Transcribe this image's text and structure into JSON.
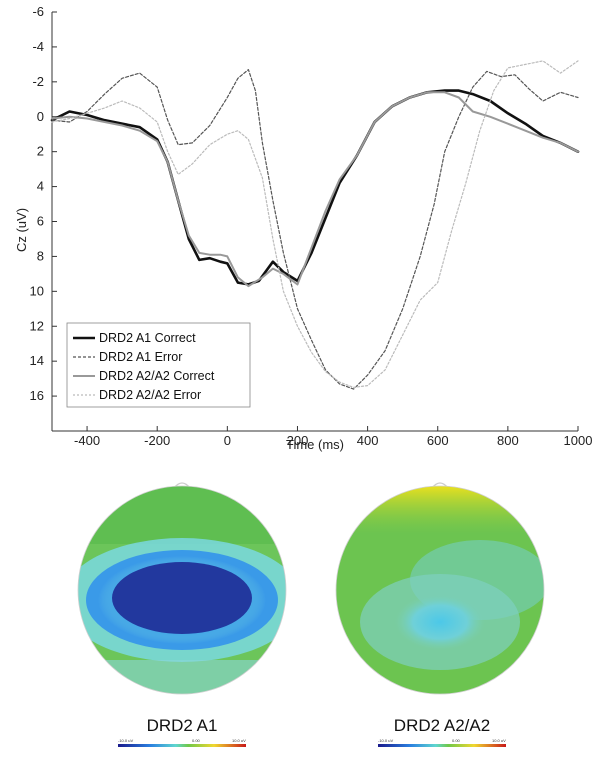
{
  "chart_data": {
    "type": "line",
    "xlabel": "Time (ms)",
    "ylabel": "Cz (uV)",
    "xlim": [
      -500,
      1000
    ],
    "ylim": [
      -6,
      18
    ],
    "y_inverted": true,
    "xticks": [
      "-400",
      "-200",
      "0",
      "200",
      "400",
      "600",
      "800",
      "1000"
    ],
    "yticks": [
      "-6",
      "-4",
      "-2",
      "0",
      "2",
      "4",
      "6",
      "8",
      "10",
      "12",
      "14",
      "16"
    ],
    "legend_position": "bottom-left",
    "series": [
      {
        "name": "DRD2 A1 Correct",
        "style": "solid-thick",
        "color": "#111111",
        "points": [
          [
            -500,
            0.2
          ],
          [
            -450,
            -0.3
          ],
          [
            -400,
            -0.1
          ],
          [
            -350,
            0.2
          ],
          [
            -300,
            0.4
          ],
          [
            -250,
            0.6
          ],
          [
            -200,
            1.3
          ],
          [
            -170,
            2.6
          ],
          [
            -140,
            4.8
          ],
          [
            -110,
            7.0
          ],
          [
            -80,
            8.2
          ],
          [
            -50,
            8.1
          ],
          [
            -20,
            8.3
          ],
          [
            0,
            8.4
          ],
          [
            30,
            9.5
          ],
          [
            60,
            9.6
          ],
          [
            90,
            9.4
          ],
          [
            130,
            8.3
          ],
          [
            160,
            8.9
          ],
          [
            200,
            9.4
          ],
          [
            240,
            7.8
          ],
          [
            280,
            5.8
          ],
          [
            320,
            3.8
          ],
          [
            370,
            2.2
          ],
          [
            420,
            0.3
          ],
          [
            470,
            -0.6
          ],
          [
            520,
            -1.1
          ],
          [
            570,
            -1.4
          ],
          [
            620,
            -1.5
          ],
          [
            660,
            -1.5
          ],
          [
            700,
            -1.3
          ],
          [
            750,
            -0.9
          ],
          [
            800,
            -0.2
          ],
          [
            850,
            0.4
          ],
          [
            900,
            1.1
          ],
          [
            950,
            1.5
          ],
          [
            1000,
            2.0
          ]
        ]
      },
      {
        "name": "DRD2 A1 Error",
        "style": "dashed",
        "color": "#555555",
        "points": [
          [
            -500,
            0.2
          ],
          [
            -450,
            0.3
          ],
          [
            -400,
            -0.3
          ],
          [
            -350,
            -1.3
          ],
          [
            -300,
            -2.2
          ],
          [
            -250,
            -2.5
          ],
          [
            -200,
            -1.7
          ],
          [
            -170,
            0.2
          ],
          [
            -140,
            1.6
          ],
          [
            -100,
            1.5
          ],
          [
            -50,
            0.5
          ],
          [
            0,
            -1.1
          ],
          [
            30,
            -2.2
          ],
          [
            60,
            -2.7
          ],
          [
            80,
            -1.5
          ],
          [
            100,
            1.5
          ],
          [
            130,
            4.8
          ],
          [
            160,
            7.8
          ],
          [
            200,
            11.0
          ],
          [
            240,
            12.8
          ],
          [
            280,
            14.5
          ],
          [
            320,
            15.3
          ],
          [
            360,
            15.6
          ],
          [
            400,
            14.8
          ],
          [
            450,
            13.4
          ],
          [
            500,
            11.0
          ],
          [
            550,
            8.0
          ],
          [
            590,
            5.0
          ],
          [
            620,
            2.0
          ],
          [
            660,
            0.0
          ],
          [
            700,
            -1.7
          ],
          [
            740,
            -2.6
          ],
          [
            780,
            -2.3
          ],
          [
            820,
            -2.4
          ],
          [
            860,
            -1.6
          ],
          [
            900,
            -0.9
          ],
          [
            950,
            -1.4
          ],
          [
            1000,
            -1.1
          ]
        ]
      },
      {
        "name": "DRD2 A2/A2 Correct",
        "style": "solid-gray",
        "color": "#999999",
        "points": [
          [
            -500,
            0.1
          ],
          [
            -450,
            0.0
          ],
          [
            -400,
            0.1
          ],
          [
            -350,
            0.3
          ],
          [
            -300,
            0.5
          ],
          [
            -250,
            0.8
          ],
          [
            -200,
            1.4
          ],
          [
            -170,
            2.6
          ],
          [
            -140,
            4.8
          ],
          [
            -110,
            6.8
          ],
          [
            -80,
            7.8
          ],
          [
            -50,
            7.9
          ],
          [
            -20,
            7.9
          ],
          [
            0,
            8.0
          ],
          [
            30,
            9.2
          ],
          [
            60,
            9.7
          ],
          [
            100,
            9.2
          ],
          [
            130,
            8.7
          ],
          [
            160,
            9.0
          ],
          [
            200,
            9.6
          ],
          [
            240,
            7.5
          ],
          [
            280,
            5.4
          ],
          [
            320,
            3.6
          ],
          [
            370,
            2.2
          ],
          [
            420,
            0.3
          ],
          [
            470,
            -0.6
          ],
          [
            520,
            -1.1
          ],
          [
            570,
            -1.4
          ],
          [
            620,
            -1.4
          ],
          [
            660,
            -1.1
          ],
          [
            700,
            -0.3
          ],
          [
            750,
            0.0
          ],
          [
            800,
            0.4
          ],
          [
            850,
            0.8
          ],
          [
            900,
            1.2
          ],
          [
            950,
            1.5
          ],
          [
            1000,
            2.0
          ]
        ]
      },
      {
        "name": "DRD2 A2/A2 Error",
        "style": "dotted-light",
        "color": "#bbbbbb",
        "points": [
          [
            -500,
            0.3
          ],
          [
            -450,
            0.1
          ],
          [
            -400,
            -0.2
          ],
          [
            -350,
            -0.5
          ],
          [
            -300,
            -0.9
          ],
          [
            -250,
            -0.5
          ],
          [
            -200,
            0.3
          ],
          [
            -170,
            2.0
          ],
          [
            -140,
            3.3
          ],
          [
            -100,
            2.7
          ],
          [
            -50,
            1.6
          ],
          [
            0,
            1.0
          ],
          [
            30,
            0.8
          ],
          [
            60,
            1.3
          ],
          [
            100,
            3.5
          ],
          [
            130,
            7.0
          ],
          [
            160,
            10.0
          ],
          [
            200,
            12.0
          ],
          [
            240,
            13.5
          ],
          [
            280,
            14.6
          ],
          [
            320,
            15.2
          ],
          [
            360,
            15.5
          ],
          [
            400,
            15.4
          ],
          [
            450,
            14.5
          ],
          [
            500,
            12.5
          ],
          [
            550,
            10.5
          ],
          [
            600,
            9.5
          ],
          [
            640,
            6.5
          ],
          [
            680,
            3.8
          ],
          [
            720,
            0.8
          ],
          [
            760,
            -1.5
          ],
          [
            800,
            -2.8
          ],
          [
            850,
            -3.0
          ],
          [
            900,
            -3.2
          ],
          [
            950,
            -2.5
          ],
          [
            1000,
            -3.2
          ]
        ]
      }
    ],
    "topomaps": [
      {
        "label": "DRD2 A1"
      },
      {
        "label": "DRD2 A2/A2"
      }
    ],
    "colorbar_ticks": [
      "-10.0 uV",
      "0.00",
      "10.0 uV"
    ]
  }
}
